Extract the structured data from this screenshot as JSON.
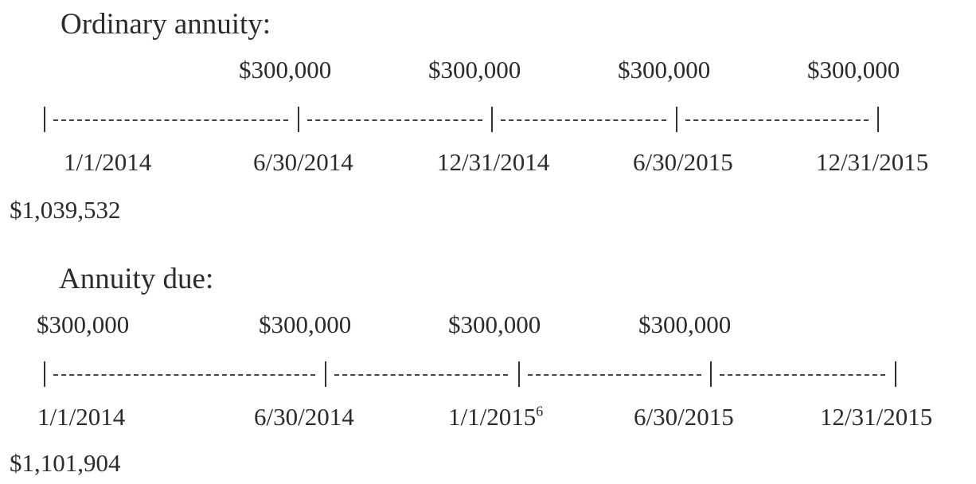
{
  "ordinary": {
    "heading": "Ordinary annuity:",
    "payments": [
      "$300,000",
      "$300,000",
      "$300,000",
      "$300,000"
    ],
    "dates": [
      "1/1/2014",
      "6/30/2014",
      "12/31/2014",
      "6/30/2015",
      "12/31/2015"
    ],
    "present_value": "$1,039,532"
  },
  "due": {
    "heading": "Annuity due:",
    "payments": [
      "$300,000",
      "$300,000",
      "$300,000",
      "$300,000"
    ],
    "dates": [
      "1/1/2014",
      "6/30/2014",
      "1/1/2015",
      "6/30/2015",
      "12/31/2015"
    ],
    "date_footnote": "6",
    "present_value": "$1,101,904"
  }
}
